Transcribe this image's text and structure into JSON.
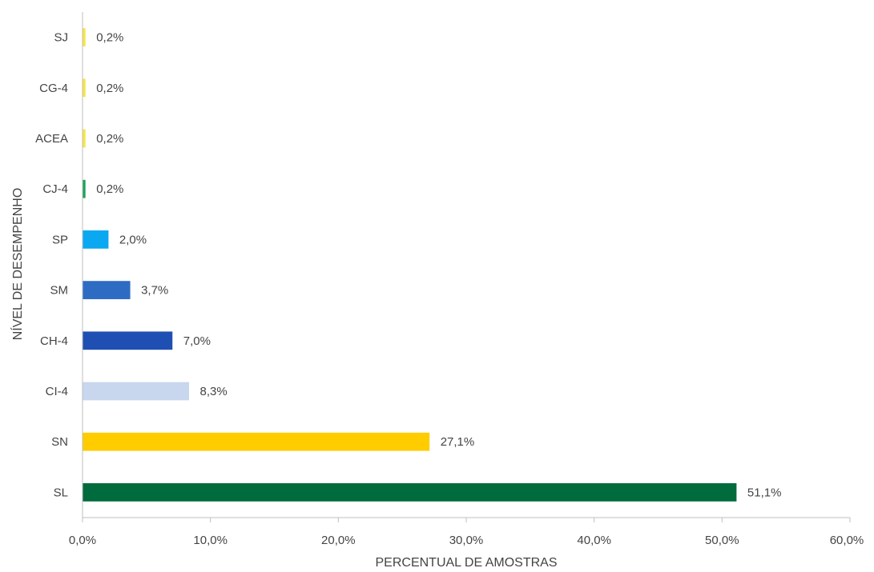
{
  "chart_data": {
    "type": "bar",
    "orientation": "horizontal",
    "title": "",
    "xlabel": "PERCENTUAL DE AMOSTRAS",
    "ylabel": "NÍVEL DE DESEMPENHO",
    "categories": [
      "SJ",
      "CG-4",
      "ACEA",
      "CJ-4",
      "SP",
      "SM",
      "CH-4",
      "CI-4",
      "SN",
      "SL"
    ],
    "values": [
      0.2,
      0.2,
      0.2,
      0.2,
      2.0,
      3.7,
      7.0,
      8.3,
      27.1,
      51.1
    ],
    "value_labels": [
      "0,2%",
      "0,2%",
      "0,2%",
      "0,2%",
      "2,0%",
      "3,7%",
      "7,0%",
      "8,3%",
      "27,1%",
      "51,1%"
    ],
    "colors": [
      "#f5e642",
      "#f5e642",
      "#f5e642",
      "#1aa35a",
      "#0aa8f0",
      "#2e6cc4",
      "#1f4fb3",
      "#c8d6ee",
      "#ffcc00",
      "#006b3c"
    ],
    "xlim": [
      0,
      60
    ],
    "xticks": [
      0,
      10,
      20,
      30,
      40,
      50,
      60
    ],
    "xtick_labels": [
      "0,0%",
      "10,0%",
      "20,0%",
      "30,0%",
      "40,0%",
      "50,0%",
      "60,0%"
    ],
    "grid": false,
    "legend": "none"
  }
}
